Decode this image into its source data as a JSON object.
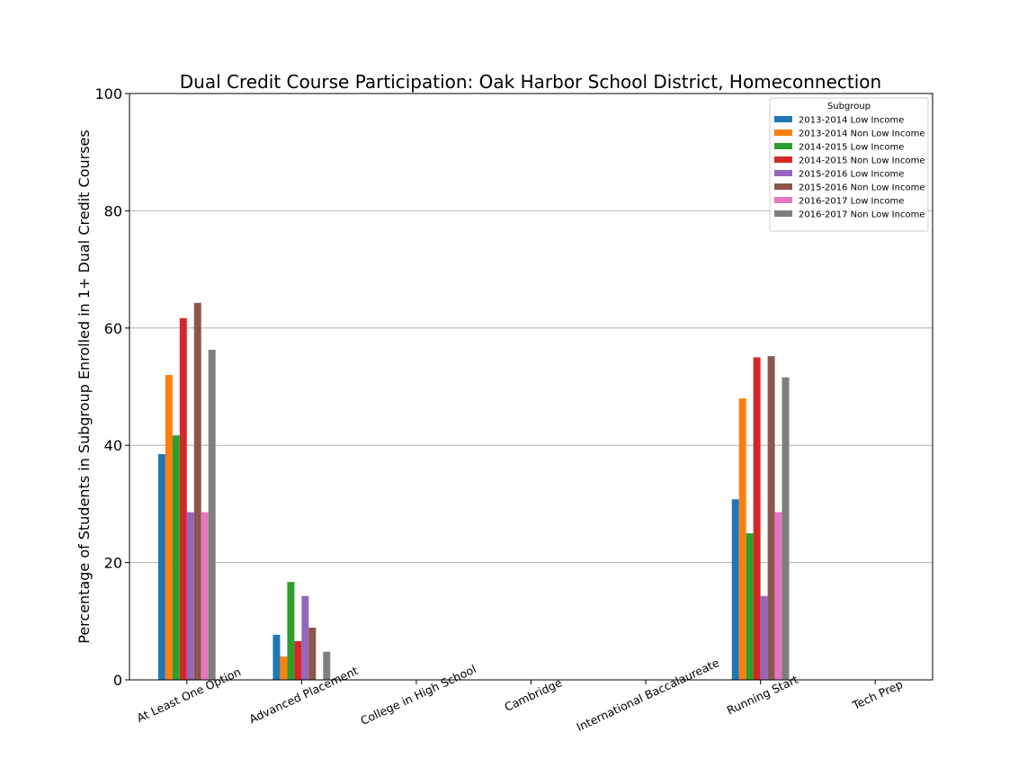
{
  "chart_data": {
    "type": "bar",
    "title": "Dual Credit Course Participation: Oak Harbor School District, Homeconnection",
    "xlabel": "",
    "ylabel": "Percentage of Students in Subgroup Enrolled in 1+ Dual Credit Courses",
    "ylim": [
      0,
      100
    ],
    "yticks": [
      "0",
      "20",
      "40",
      "60",
      "80",
      "100"
    ],
    "grid": "horizontal",
    "legend": {
      "title": "Subgroup",
      "placement": "top-right"
    },
    "categories": [
      "At Least One Option",
      "Advanced Placement",
      "College in High School",
      "Cambridge",
      "International Baccalaureate",
      "Running Start",
      "Tech Prep"
    ],
    "series": [
      {
        "name": "2013-2014 Low Income",
        "color": "#1f77b4",
        "values": [
          38.5,
          7.7,
          0,
          0,
          0,
          30.8,
          0
        ]
      },
      {
        "name": "2013-2014 Non Low Income",
        "color": "#ff7f0e",
        "values": [
          52.0,
          4.0,
          0,
          0,
          0,
          48.0,
          0
        ]
      },
      {
        "name": "2014-2015 Low Income",
        "color": "#2ca02c",
        "values": [
          41.7,
          16.7,
          0,
          0,
          0,
          25.0,
          0
        ]
      },
      {
        "name": "2014-2015 Non Low Income",
        "color": "#d62728",
        "values": [
          61.7,
          6.6,
          0,
          0,
          0,
          55.0,
          0
        ]
      },
      {
        "name": "2015-2016 Low Income",
        "color": "#9467bd",
        "values": [
          28.6,
          14.3,
          0,
          0,
          0,
          14.3,
          0
        ]
      },
      {
        "name": "2015-2016 Non Low Income",
        "color": "#8c564b",
        "values": [
          64.3,
          8.9,
          0,
          0,
          0,
          55.2,
          0
        ]
      },
      {
        "name": "2016-2017 Low Income",
        "color": "#e377c2",
        "values": [
          28.6,
          0,
          0,
          0,
          0,
          28.6,
          0
        ]
      },
      {
        "name": "2016-2017 Non Low Income",
        "color": "#7f7f7f",
        "values": [
          56.3,
          4.8,
          0,
          0,
          0,
          51.6,
          0
        ]
      }
    ]
  }
}
